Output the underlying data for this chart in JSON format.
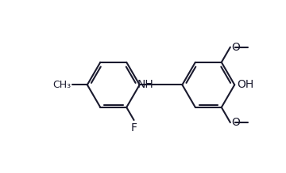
{
  "bg_color": "#ffffff",
  "line_color": "#1a1a2e",
  "bond_lw": 1.5,
  "font_size": 10,
  "fig_w": 3.6,
  "fig_h": 2.19,
  "dpi": 100,
  "xlim": [
    0,
    10
  ],
  "ylim": [
    0,
    6.08
  ]
}
